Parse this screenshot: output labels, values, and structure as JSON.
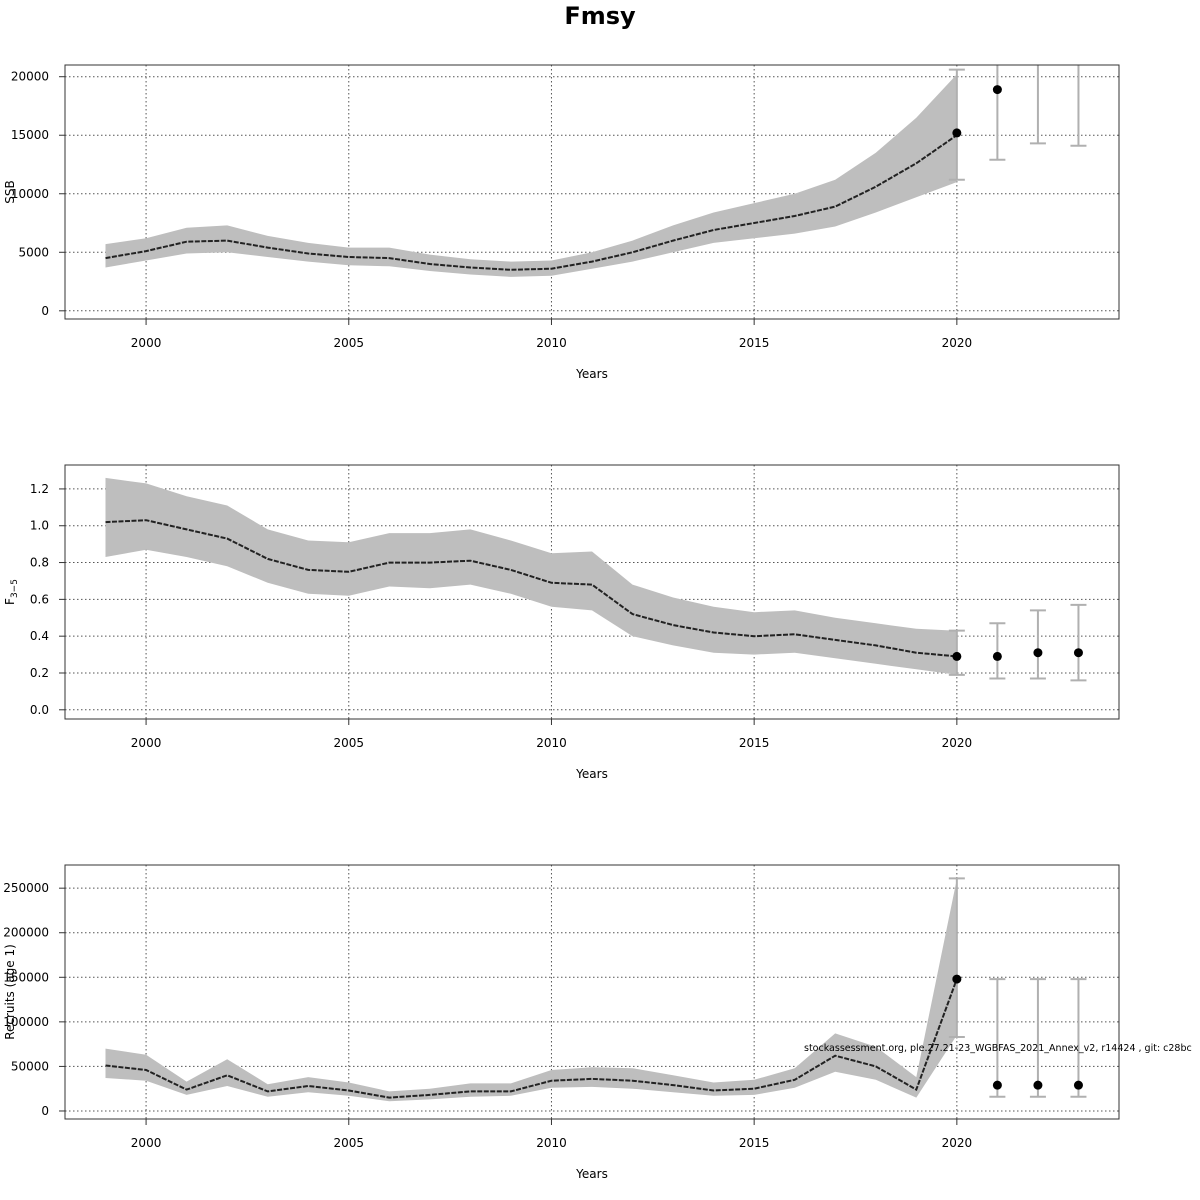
{
  "title": "Fmsy",
  "footnote": "stockassessment.org, ple.27.21-23_WGBFAS_2021_Annex_v2, r14424 , git: c28bc",
  "colors": {
    "band": "#bebebe",
    "line": "#222222",
    "point": "#000000",
    "grid": "#555555",
    "errorbar": "#b0b0b0"
  },
  "chart_data": [
    {
      "type": "line",
      "ylabel": "SSB",
      "xlabel": "Years",
      "xlim": [
        1998,
        2024
      ],
      "ylim": [
        -700,
        21000
      ],
      "xticks": [
        2000,
        2005,
        2010,
        2015,
        2020
      ],
      "yticks": [
        0,
        5000,
        10000,
        15000,
        20000
      ],
      "grid": true,
      "years": [
        1999,
        2000,
        2001,
        2002,
        2003,
        2004,
        2005,
        2006,
        2007,
        2008,
        2009,
        2010,
        2011,
        2012,
        2013,
        2014,
        2015,
        2016,
        2017,
        2018,
        2019,
        2020
      ],
      "estimate": [
        4500,
        5100,
        5900,
        6000,
        5400,
        4900,
        4600,
        4500,
        4000,
        3700,
        3500,
        3600,
        4200,
        5000,
        6000,
        6900,
        7500,
        8100,
        8900,
        10600,
        12600,
        15000
      ],
      "lower": [
        3700,
        4300,
        4900,
        5000,
        4600,
        4200,
        3900,
        3800,
        3400,
        3100,
        2900,
        3000,
        3600,
        4200,
        5000,
        5800,
        6200,
        6600,
        7200,
        8400,
        9700,
        11000
      ],
      "upper": [
        5700,
        6200,
        7100,
        7300,
        6400,
        5800,
        5400,
        5400,
        4800,
        4400,
        4200,
        4300,
        5000,
        6000,
        7300,
        8400,
        9200,
        10000,
        11200,
        13500,
        16500,
        20200
      ],
      "final_point": {
        "year": 2020,
        "value": 15200,
        "lower": 11200,
        "upper": 20600
      },
      "forecast": [
        {
          "year": 2021,
          "value": 18900,
          "lower": 12900,
          "upper": 21500
        },
        {
          "year": 2022,
          "value": null,
          "lower": 14300,
          "upper": 21500
        },
        {
          "year": 2023,
          "value": null,
          "lower": 14100,
          "upper": 21500
        }
      ]
    },
    {
      "type": "line",
      "ylabel": "F3−5",
      "ylabel_main": "F",
      "ylabel_sub": "3−5",
      "xlabel": "Years",
      "xlim": [
        1998,
        2024
      ],
      "ylim": [
        -0.05,
        1.33
      ],
      "xticks": [
        2000,
        2005,
        2010,
        2015,
        2020
      ],
      "yticks": [
        0.0,
        0.2,
        0.4,
        0.6,
        0.8,
        1.0,
        1.2
      ],
      "ytick_labels": [
        "0.0",
        "0.2",
        "0.4",
        "0.6",
        "0.8",
        "1.0",
        "1.2"
      ],
      "grid": true,
      "years": [
        1999,
        2000,
        2001,
        2002,
        2003,
        2004,
        2005,
        2006,
        2007,
        2008,
        2009,
        2010,
        2011,
        2012,
        2013,
        2014,
        2015,
        2016,
        2017,
        2018,
        2019,
        2020
      ],
      "estimate": [
        1.02,
        1.03,
        0.98,
        0.93,
        0.82,
        0.76,
        0.75,
        0.8,
        0.8,
        0.81,
        0.76,
        0.69,
        0.68,
        0.52,
        0.46,
        0.42,
        0.4,
        0.41,
        0.38,
        0.35,
        0.31,
        0.29
      ],
      "lower": [
        0.83,
        0.87,
        0.83,
        0.78,
        0.69,
        0.63,
        0.62,
        0.67,
        0.66,
        0.68,
        0.63,
        0.56,
        0.54,
        0.4,
        0.35,
        0.31,
        0.3,
        0.31,
        0.28,
        0.25,
        0.22,
        0.19
      ],
      "upper": [
        1.26,
        1.23,
        1.16,
        1.11,
        0.98,
        0.92,
        0.91,
        0.96,
        0.96,
        0.98,
        0.92,
        0.85,
        0.86,
        0.68,
        0.61,
        0.56,
        0.53,
        0.54,
        0.5,
        0.47,
        0.44,
        0.43
      ],
      "final_point": {
        "year": 2020,
        "value": 0.29,
        "lower": 0.19,
        "upper": 0.43
      },
      "forecast": [
        {
          "year": 2021,
          "value": 0.29,
          "lower": 0.17,
          "upper": 0.47
        },
        {
          "year": 2022,
          "value": 0.31,
          "lower": 0.17,
          "upper": 0.54
        },
        {
          "year": 2023,
          "value": 0.31,
          "lower": 0.16,
          "upper": 0.57
        }
      ]
    },
    {
      "type": "line",
      "ylabel": "Recruits (age 1)",
      "xlabel": "Years",
      "xlim": [
        1998,
        2024
      ],
      "ylim": [
        -9000,
        276000
      ],
      "xticks": [
        2000,
        2005,
        2010,
        2015,
        2020
      ],
      "yticks": [
        0,
        50000,
        100000,
        150000,
        200000,
        250000
      ],
      "grid": true,
      "years": [
        1999,
        2000,
        2001,
        2002,
        2003,
        2004,
        2005,
        2006,
        2007,
        2008,
        2009,
        2010,
        2011,
        2012,
        2013,
        2014,
        2015,
        2016,
        2017,
        2018,
        2019,
        2020
      ],
      "estimate": [
        51000,
        46000,
        24000,
        40000,
        22000,
        28000,
        23000,
        15000,
        18000,
        22000,
        22000,
        34000,
        36000,
        34000,
        29000,
        23000,
        25000,
        35000,
        62000,
        50000,
        24000,
        148000
      ],
      "lower": [
        37000,
        34000,
        18000,
        28000,
        16000,
        21000,
        17000,
        11000,
        13000,
        16000,
        17000,
        26000,
        27000,
        25000,
        21000,
        17000,
        18000,
        26000,
        44000,
        35000,
        15000,
        85000
      ],
      "upper": [
        70000,
        63000,
        33000,
        58000,
        30000,
        38000,
        32000,
        22000,
        25000,
        31000,
        31000,
        46000,
        49000,
        48000,
        40000,
        32000,
        35000,
        48000,
        87000,
        72000,
        38000,
        260000
      ],
      "final_point": {
        "year": 2020,
        "value": 148000,
        "lower": 83000,
        "upper": 261000
      },
      "forecast": [
        {
          "year": 2021,
          "value": 29000,
          "lower": 16000,
          "upper": 148000
        },
        {
          "year": 2022,
          "value": 29000,
          "lower": 16000,
          "upper": 148000
        },
        {
          "year": 2023,
          "value": 29000,
          "lower": 16000,
          "upper": 148000
        }
      ]
    }
  ]
}
